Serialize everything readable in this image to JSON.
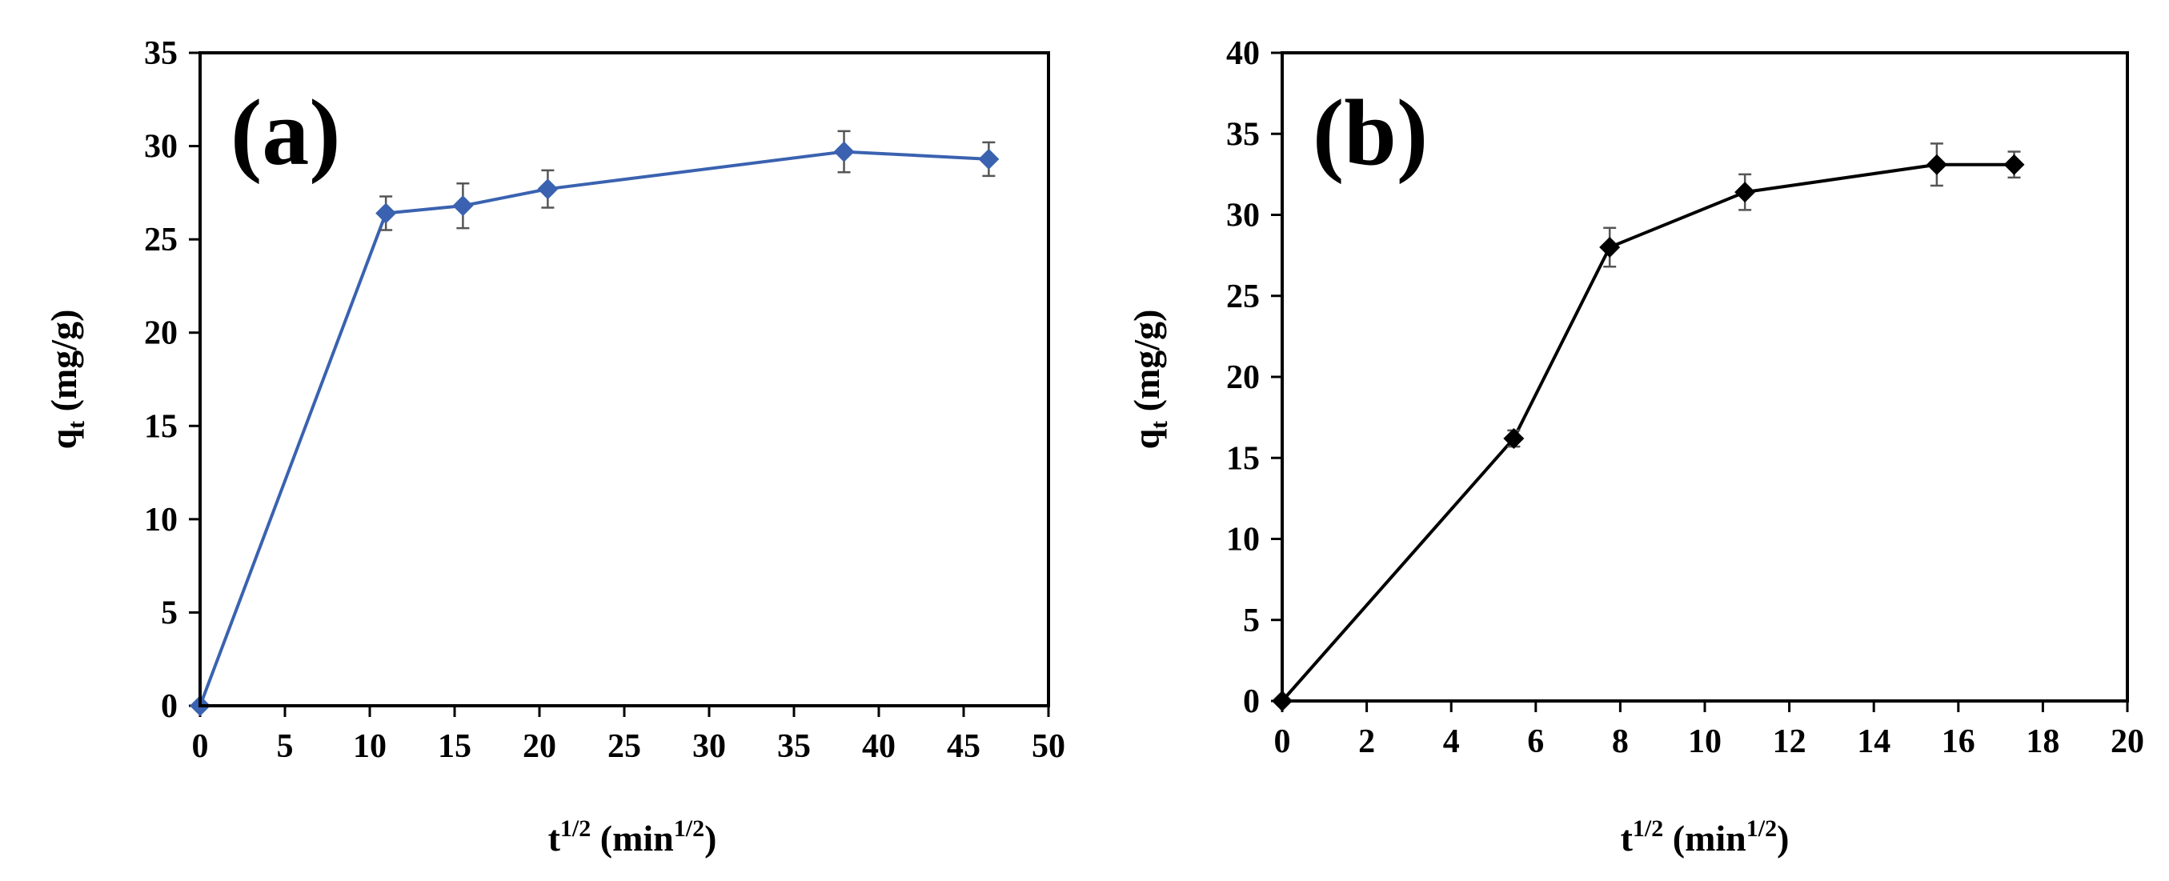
{
  "chart_data": [
    {
      "type": "line",
      "panel_label": "(a)",
      "ylabel": "q",
      "ylabel_sub": "t",
      "ylabel_unit": " (mg/g)",
      "xlabel": "t",
      "xlabel_sup": "1/2",
      "xlabel_unit_open": " (min",
      "xlabel_unit_sup": "1/2",
      "xlabel_unit_close": ")",
      "xlim": [
        0,
        50
      ],
      "ylim": [
        0,
        35
      ],
      "xticks": [
        0,
        5,
        10,
        15,
        20,
        25,
        30,
        35,
        40,
        45,
        50
      ],
      "yticks": [
        0,
        5,
        10,
        15,
        20,
        25,
        30,
        35
      ],
      "series": [
        {
          "name": "qt",
          "color": "#3a62b0",
          "marker": "diamond",
          "x": [
            0,
            10.95,
            15.49,
            20.49,
            37.95,
            46.48
          ],
          "y": [
            0,
            26.4,
            26.8,
            27.7,
            29.7,
            29.3
          ],
          "err": [
            0,
            0.9,
            1.2,
            1.0,
            1.1,
            0.9
          ]
        }
      ]
    },
    {
      "type": "line",
      "panel_label": "(b)",
      "ylabel": "q",
      "ylabel_sub": "t",
      "ylabel_unit": " (mg/g)",
      "xlabel": "t",
      "xlabel_sup": "1/2",
      "xlabel_unit_open": " (min",
      "xlabel_unit_sup": "1/2",
      "xlabel_unit_close": ")",
      "xlim": [
        0,
        20
      ],
      "ylim": [
        0,
        40
      ],
      "xticks": [
        0,
        2,
        4,
        6,
        8,
        10,
        12,
        14,
        16,
        18,
        20
      ],
      "yticks": [
        0,
        5,
        10,
        15,
        20,
        25,
        30,
        35,
        40
      ],
      "series": [
        {
          "name": "qt",
          "color": "#000000",
          "marker": "diamond",
          "x": [
            0,
            5.48,
            7.75,
            10.95,
            15.49,
            17.32
          ],
          "y": [
            0,
            16.2,
            28.0,
            31.4,
            33.1,
            33.1
          ],
          "err": [
            0,
            0.5,
            1.2,
            1.1,
            1.3,
            0.8
          ]
        }
      ]
    }
  ]
}
